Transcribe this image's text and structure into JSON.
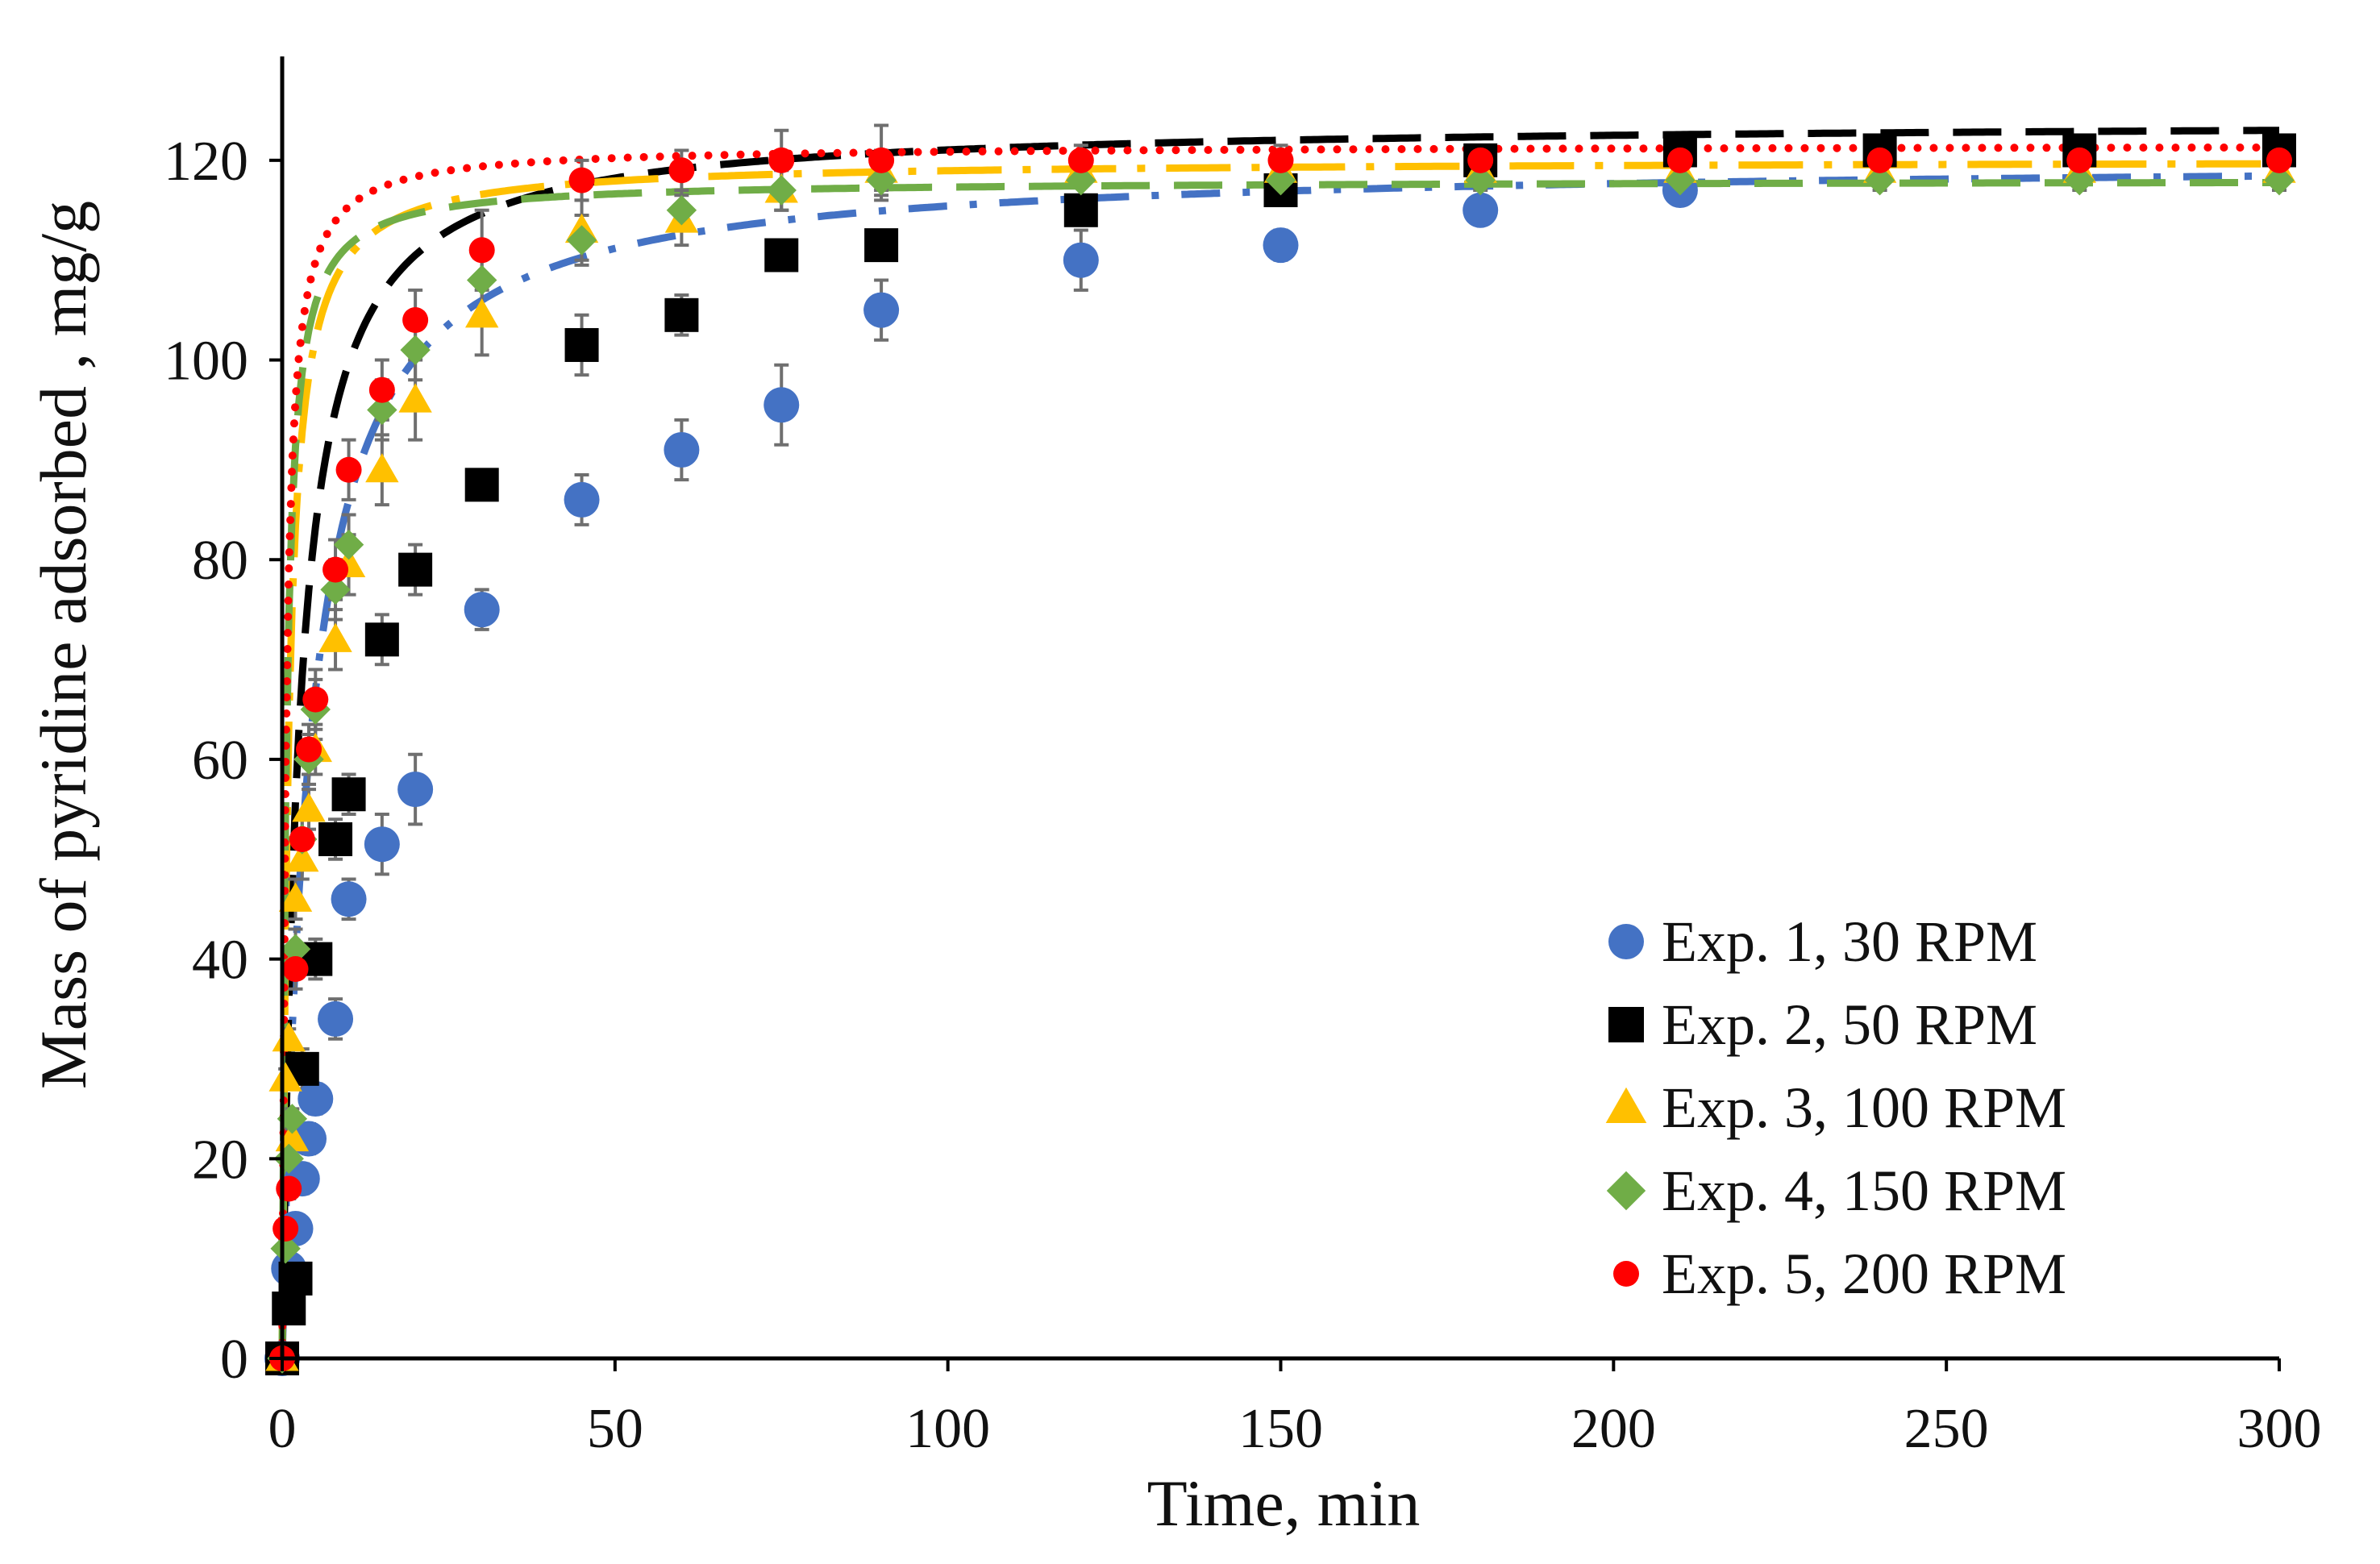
{
  "chart_data": {
    "type": "scatter",
    "title": "",
    "xlabel": "Time, min",
    "ylabel": "Mass of pyridine adsorbed , mg/g",
    "xlim": [
      0,
      300
    ],
    "ylim": [
      0,
      130
    ],
    "xticks": [
      0,
      50,
      100,
      150,
      200,
      250,
      300
    ],
    "yticks": [
      0,
      20,
      40,
      60,
      80,
      100,
      120
    ],
    "xtick_labels": [
      "0",
      "50",
      "100",
      "150",
      "200",
      "250",
      "300"
    ],
    "ytick_labels": [
      "0",
      "20",
      "40",
      "60",
      "80",
      "100",
      "120"
    ],
    "grid": false,
    "legend_position": "bottom-right",
    "series": [
      {
        "name": "Exp. 1, 30 RPM",
        "marker": "circle",
        "color": "#4472C4",
        "line_style": "dash-dot",
        "fit": {
          "qe": 120.0,
          "k": 0.0021
        },
        "x": [
          0,
          1,
          2,
          3,
          4,
          5,
          8,
          10,
          15,
          20,
          30,
          45,
          60,
          75,
          90,
          120,
          150,
          180,
          210
        ],
        "y": [
          0,
          9,
          13,
          18,
          22,
          26,
          34,
          46,
          51.5,
          57,
          75,
          86,
          91,
          95.5,
          105,
          110,
          111.5,
          115,
          117
        ],
        "err": [
          0,
          1,
          1,
          1.5,
          1.5,
          1.5,
          2,
          2,
          3,
          3.5,
          2,
          2.5,
          3,
          4,
          3,
          3,
          1.5,
          1,
          1
        ]
      },
      {
        "name": "Exp. 2, 50 RPM",
        "marker": "square",
        "color": "#000000",
        "line_style": "dash",
        "fit": {
          "qe": 124.0,
          "k": 0.0033
        },
        "x": [
          0,
          1,
          2,
          3,
          5,
          8,
          10,
          15,
          20,
          30,
          45,
          60,
          75,
          90,
          120,
          150,
          180,
          210,
          240,
          270,
          300
        ],
        "y": [
          0,
          5,
          8,
          29,
          40,
          52,
          56.5,
          72,
          79,
          87.5,
          101.5,
          104.5,
          110.5,
          111.5,
          115,
          117,
          120,
          121,
          121,
          121,
          121
        ],
        "err": [
          0,
          1,
          1,
          2,
          2,
          2,
          2,
          2.5,
          2.5,
          1.5,
          3,
          2,
          1.5,
          1.5,
          1.5,
          1.5,
          1,
          1,
          1,
          1,
          1
        ]
      },
      {
        "name": "Exp. 3, 100 RPM",
        "marker": "triangle",
        "color": "#FFC000",
        "line_style": "long-dash-dot",
        "fit": {
          "qe": 120.0,
          "k": 0.0095
        },
        "x": [
          0,
          0.5,
          1,
          1.5,
          2,
          3,
          4,
          5,
          8,
          10,
          15,
          20,
          30,
          45,
          60,
          75,
          90,
          120,
          150,
          180,
          210,
          240,
          270,
          300
        ],
        "y": [
          0,
          28,
          32,
          22,
          46,
          50,
          55,
          61,
          72,
          79.5,
          89,
          96,
          104.5,
          113,
          114,
          117,
          119,
          119,
          119,
          119,
          119,
          119,
          119,
          119
        ],
        "err": [
          0,
          1,
          1,
          1,
          2,
          2,
          2,
          2.5,
          3,
          3,
          3.5,
          4,
          4,
          3,
          2.5,
          2,
          2,
          1.5,
          1.5,
          1,
          1,
          1,
          1,
          1
        ]
      },
      {
        "name": "Exp. 4, 150 RPM",
        "marker": "diamond",
        "color": "#70AD47",
        "line_style": "dash",
        "fit": {
          "qe": 118.0,
          "k": 0.0145
        },
        "x": [
          0,
          0.5,
          1,
          1.5,
          2,
          3,
          4,
          5,
          8,
          10,
          15,
          20,
          30,
          45,
          60,
          75,
          90,
          120,
          150,
          180,
          210,
          240,
          270,
          300
        ],
        "y": [
          0,
          11,
          20,
          24,
          41,
          52,
          60,
          65,
          77,
          81.5,
          95,
          101,
          108,
          112,
          115,
          117,
          118,
          118,
          118,
          118,
          118,
          118,
          118,
          118
        ],
        "err": [
          0,
          1,
          1,
          1,
          2,
          2,
          2.5,
          3,
          3,
          3,
          3,
          3,
          3.5,
          2.5,
          2,
          2,
          2,
          1.5,
          1.5,
          1,
          1,
          1,
          1,
          1
        ]
      },
      {
        "name": "Exp. 5, 200 RPM",
        "marker": "circle",
        "color": "#FF0000",
        "line_style": "dot",
        "fit": {
          "qe": 121.5,
          "k": 0.0155
        },
        "x": [
          0,
          0.5,
          1,
          2,
          3,
          4,
          5,
          8,
          10,
          15,
          20,
          30,
          45,
          60,
          75,
          90,
          120,
          150,
          180,
          210,
          240,
          270,
          300
        ],
        "y": [
          0,
          13,
          17,
          39,
          52,
          61,
          66,
          79,
          89,
          97,
          104,
          111,
          118,
          119,
          120,
          120,
          120,
          120,
          120,
          120,
          120,
          120,
          120
        ],
        "err": [
          0,
          1,
          1,
          2,
          2,
          2.5,
          3,
          3,
          3,
          3,
          3,
          4,
          2,
          2,
          3,
          3.5,
          1.5,
          1.5,
          1,
          1,
          1,
          1,
          1
        ]
      }
    ]
  }
}
